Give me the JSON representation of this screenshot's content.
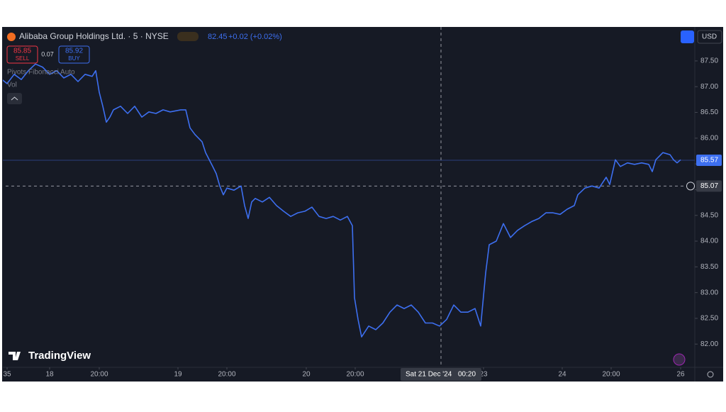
{
  "header": {
    "symbol": "Alibaba Group Holdings Ltd. · 5 · NYSE",
    "price": "82.45",
    "change": "+0.02 (+0.02%)",
    "sell_price": "85.85",
    "sell": "SELL",
    "spread": "0.07",
    "buy_price": "85.92",
    "buy": "BUY",
    "indicator": "Pivots Fibonacci Auto",
    "volume": "Vol",
    "currency": "USD",
    "brand": "TradingView"
  },
  "chart_data": {
    "type": "line",
    "color": "#3d6ff0",
    "x": [
      0,
      1,
      2,
      3,
      4,
      5,
      6,
      7,
      8,
      9,
      10,
      11,
      12,
      13,
      13.5,
      14,
      14.5,
      15,
      15.5,
      16,
      17,
      18,
      19,
      20,
      21,
      22,
      23,
      24,
      25.5,
      26.2,
      26.8,
      27.5,
      28.5,
      29,
      30,
      30.5,
      31,
      31.5,
      32,
      33,
      34,
      34.5,
      35,
      35.5,
      36,
      37,
      38,
      39,
      40,
      41,
      42,
      43,
      44,
      45,
      46,
      47,
      48,
      49,
      49.7,
      50,
      50.5,
      51,
      52,
      53,
      54,
      55,
      56,
      57,
      58,
      59,
      60,
      61,
      62,
      63,
      64,
      65,
      66,
      67,
      67.8,
      68.5,
      69,
      70,
      71,
      72,
      73,
      74,
      75,
      76,
      77,
      78,
      79,
      80,
      81,
      81.5,
      82.5,
      83.5,
      84.5,
      85.5,
      86,
      86.8,
      87.5,
      88.5,
      89.5,
      90.5,
      91.5,
      92,
      92.5,
      93.5,
      94.5,
      95,
      95.5,
      96
    ],
    "values": [
      87.17,
      87.06,
      87.24,
      87.14,
      87.31,
      87.44,
      87.38,
      87.24,
      87.31,
      87.17,
      87.24,
      87.1,
      87.24,
      87.2,
      87.31,
      86.89,
      86.62,
      86.31,
      86.41,
      86.55,
      86.62,
      86.48,
      86.62,
      86.41,
      86.51,
      86.48,
      86.55,
      86.51,
      86.55,
      86.55,
      86.2,
      86.07,
      85.93,
      85.72,
      85.45,
      85.31,
      85.07,
      84.9,
      85.03,
      84.99,
      85.07,
      84.69,
      84.44,
      84.76,
      84.83,
      84.76,
      84.85,
      84.69,
      84.58,
      84.48,
      84.55,
      84.58,
      84.66,
      84.48,
      84.44,
      84.48,
      84.41,
      84.48,
      84.3,
      82.9,
      82.48,
      82.14,
      82.35,
      82.28,
      82.41,
      82.62,
      82.76,
      82.69,
      82.76,
      82.62,
      82.41,
      82.41,
      82.35,
      82.48,
      82.76,
      82.62,
      82.62,
      82.69,
      82.35,
      83.38,
      83.93,
      84.0,
      84.34,
      84.07,
      84.21,
      84.3,
      84.38,
      84.44,
      84.55,
      84.55,
      84.52,
      84.62,
      84.69,
      84.9,
      85.03,
      85.07,
      85.03,
      85.24,
      85.1,
      85.58,
      85.45,
      85.52,
      85.49,
      85.52,
      85.49,
      85.35,
      85.58,
      85.72,
      85.68,
      85.58,
      85.52,
      85.58
    ],
    "xlim": [
      0,
      98
    ],
    "xticks": [
      {
        "value": 1,
        "label": "35"
      },
      {
        "value": 7,
        "label": "18"
      },
      {
        "value": 14,
        "label": "20:00"
      },
      {
        "value": 25.1,
        "label": "19"
      },
      {
        "value": 32,
        "label": "20:00"
      },
      {
        "value": 43.2,
        "label": "20"
      },
      {
        "value": 50.1,
        "label": "20:00"
      },
      {
        "value": 68.2,
        "label": "23"
      },
      {
        "value": 79.3,
        "label": "24"
      },
      {
        "value": 86.2,
        "label": "20:00"
      },
      {
        "value": 96,
        "label": "26"
      }
    ],
    "ylim": [
      81.59,
      88.16
    ],
    "yticks": [
      {
        "value": 82,
        "label": "82.00"
      },
      {
        "value": 82.5,
        "label": "82.50"
      },
      {
        "value": 83,
        "label": "83.00"
      },
      {
        "value": 83.5,
        "label": "83.50"
      },
      {
        "value": 84,
        "label": "84.00"
      },
      {
        "value": 84.5,
        "label": "84.50"
      },
      {
        "value": 85,
        "label": "85.00"
      },
      {
        "value": 85.5,
        "label": "85.50"
      },
      {
        "value": 86,
        "label": "86.00"
      },
      {
        "value": 86.5,
        "label": "86.50"
      },
      {
        "value": 87,
        "label": "87.00"
      },
      {
        "value": 87.5,
        "label": "87.50"
      }
    ],
    "last_price": 85.57,
    "crosshair": {
      "x": 62.2,
      "y": 85.07,
      "date_label": "Sat 21 Dec '24",
      "time_label": "00:20"
    }
  }
}
